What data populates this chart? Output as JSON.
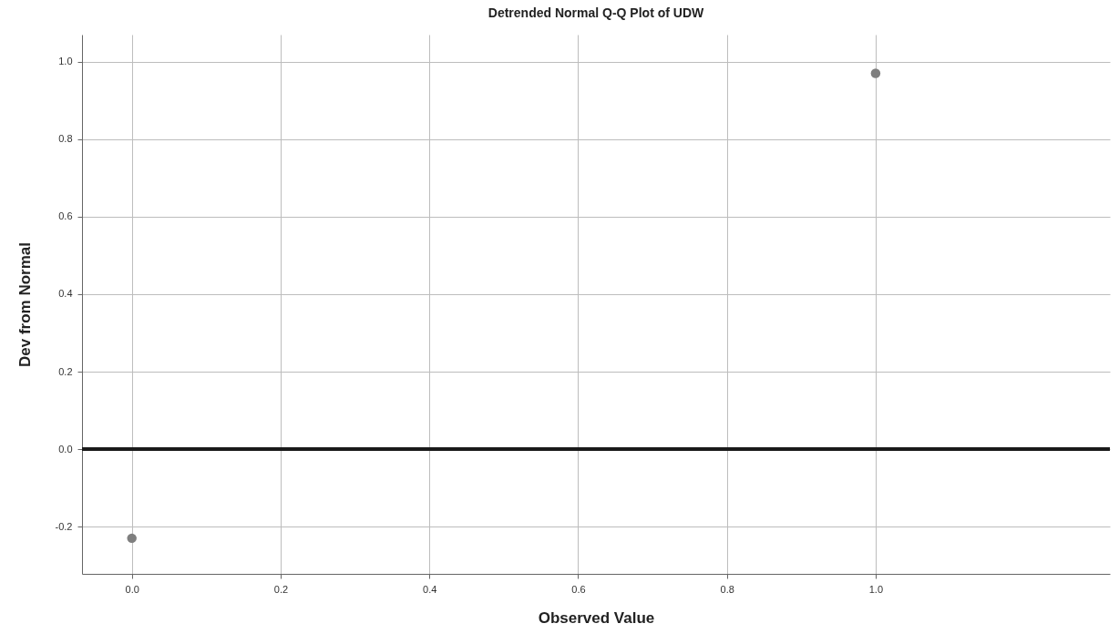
{
  "chart_data": {
    "type": "scatter",
    "title": "Detrended Normal Q-Q Plot of UDW",
    "xlabel": "Observed Value",
    "ylabel": "Dev from Normal",
    "x": [
      0,
      1
    ],
    "series": [
      {
        "color": "#7f7f7f",
        "values": [
          -0.23,
          0.97
        ]
      }
    ],
    "xlim": [
      -0.067,
      1.315
    ],
    "ylim": [
      -0.322,
      1.07
    ],
    "xticks": [
      {
        "value": 0,
        "label": "0.0"
      },
      0.2,
      0.4,
      0.6,
      0.8,
      {
        "value": 1,
        "label": "1.0"
      }
    ],
    "yticks": [
      {
        "value": -0.2,
        "label": "-0.2"
      },
      {
        "value": 0,
        "label": "0.0"
      },
      0.2,
      0.4,
      0.6,
      0.8,
      {
        "value": 1,
        "label": "1.0"
      }
    ],
    "ref_lines": [
      {
        "axis": "y",
        "value": 0,
        "color": "#1a1a1a"
      }
    ],
    "grid": true,
    "marker": "circle"
  }
}
